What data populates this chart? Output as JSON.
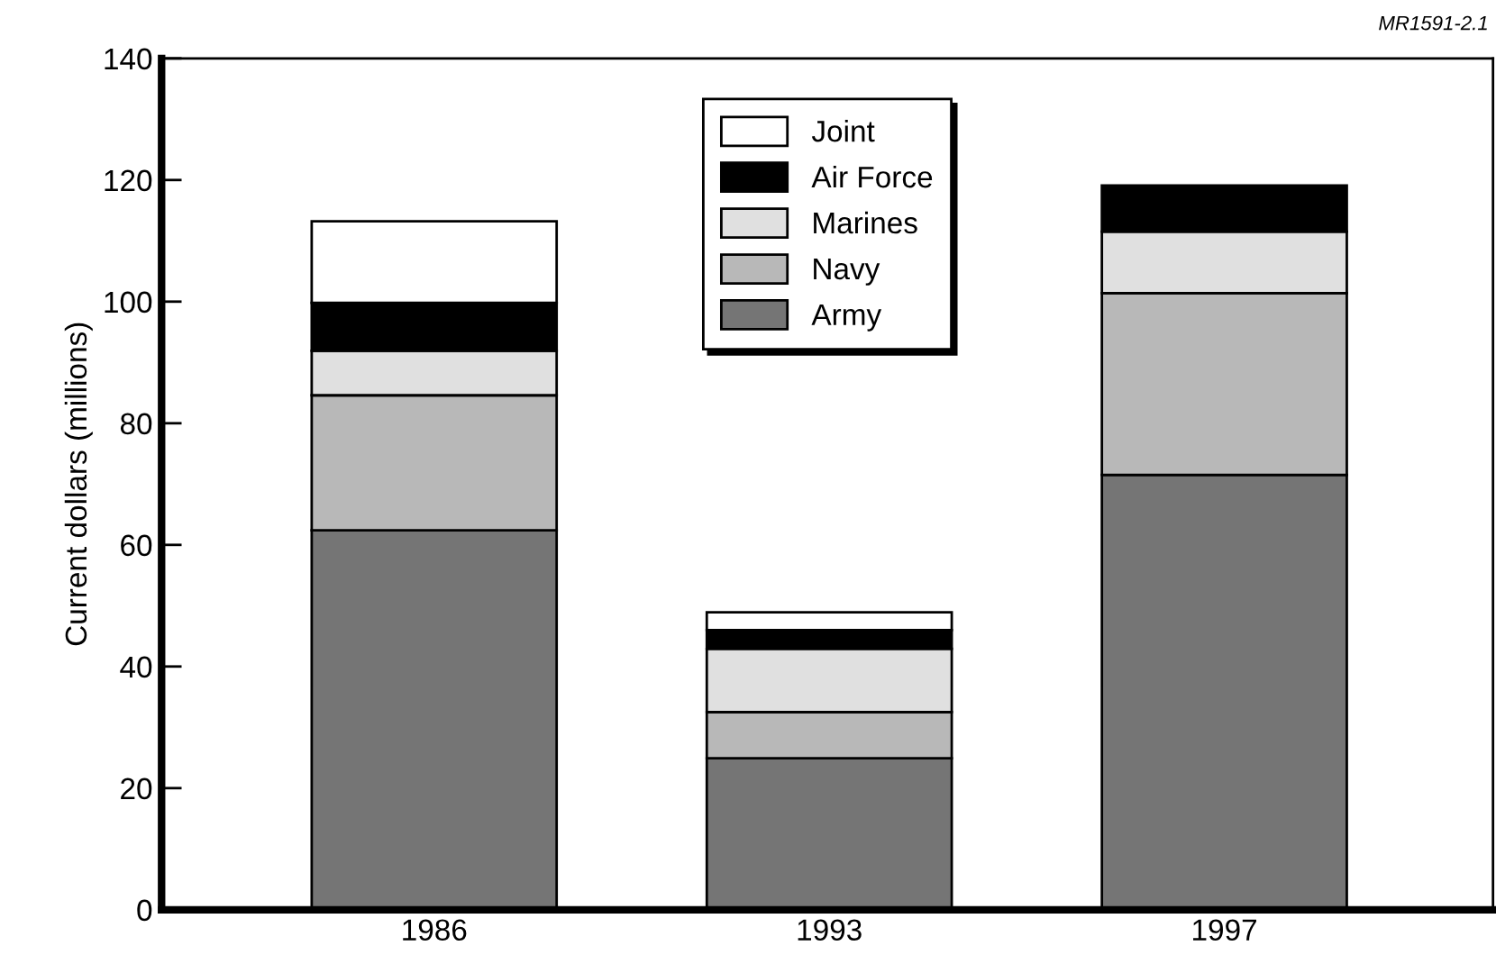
{
  "chart_data": {
    "type": "bar",
    "stacked": true,
    "ylabel": "Current dollars (millions)",
    "categories": [
      "1986",
      "1993",
      "1997"
    ],
    "series": [
      {
        "name": "Army",
        "color": "#757575",
        "values": [
          62.4,
          24.9,
          71.5
        ]
      },
      {
        "name": "Navy",
        "color": "#b8b8b8",
        "values": [
          22.2,
          7.6,
          29.9
        ]
      },
      {
        "name": "Marines",
        "color": "#e0e0e0",
        "values": [
          7.3,
          10.4,
          10.1
        ]
      },
      {
        "name": "Air Force",
        "color": "#000000",
        "values": [
          7.9,
          3.1,
          7.6
        ]
      },
      {
        "name": "Joint",
        "color": "#ffffff",
        "values": [
          13.4,
          2.9,
          null
        ]
      }
    ],
    "ylim": [
      0,
      140
    ],
    "yticks": [
      0,
      20,
      40,
      60,
      80,
      100,
      120,
      140
    ],
    "grid": false,
    "legend": "top",
    "annotations": [
      "MR1591-2.1"
    ]
  }
}
